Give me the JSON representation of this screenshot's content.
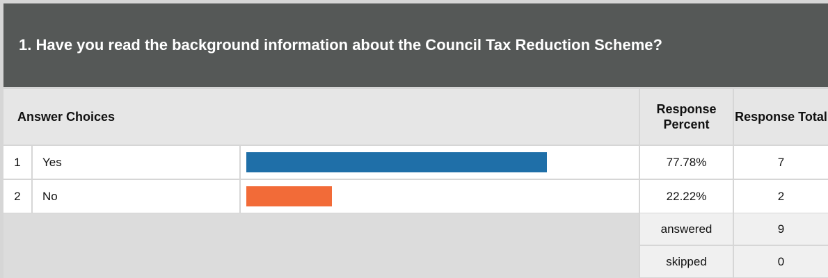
{
  "question": {
    "title": "1. Have you read the background information about the Council Tax Reduction Scheme?"
  },
  "table": {
    "headers": {
      "answer": "Answer Choices",
      "percent": "Response Percent",
      "total": "Response Total"
    },
    "rows": [
      {
        "index": "1",
        "answer": "Yes",
        "percent": 77.78,
        "percent_label": "77.78%",
        "total": 7,
        "color": "#1f6fa8"
      },
      {
        "index": "2",
        "answer": "No",
        "percent": 22.22,
        "percent_label": "22.22%",
        "total": 2,
        "color": "#f26b38"
      }
    ],
    "footer": [
      {
        "label": "answered",
        "value": 9
      },
      {
        "label": "skipped",
        "value": 0
      }
    ]
  }
}
